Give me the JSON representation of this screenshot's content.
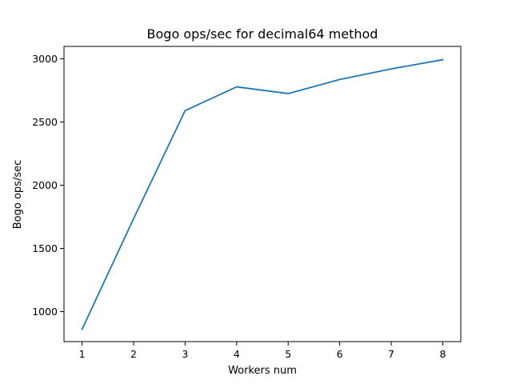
{
  "chart_data": {
    "type": "line",
    "title": "Bogo ops/sec for decimal64 method",
    "xlabel": "Workers num",
    "ylabel": "Bogo ops/sec",
    "x": [
      1,
      2,
      3,
      4,
      5,
      6,
      7,
      8
    ],
    "xticks": [
      "1",
      "2",
      "3",
      "4",
      "5",
      "6",
      "7",
      "8"
    ],
    "yticks": [
      "1000",
      "1500",
      "2000",
      "2500",
      "3000"
    ],
    "xlim": [
      0.65,
      8.35
    ],
    "ylim": [
      763,
      3098
    ],
    "grid": false,
    "series": [
      {
        "values": [
          860,
          1735,
          2590,
          2778,
          2725,
          2836,
          2920,
          2993
        ],
        "color": "#1f77b4"
      }
    ]
  }
}
